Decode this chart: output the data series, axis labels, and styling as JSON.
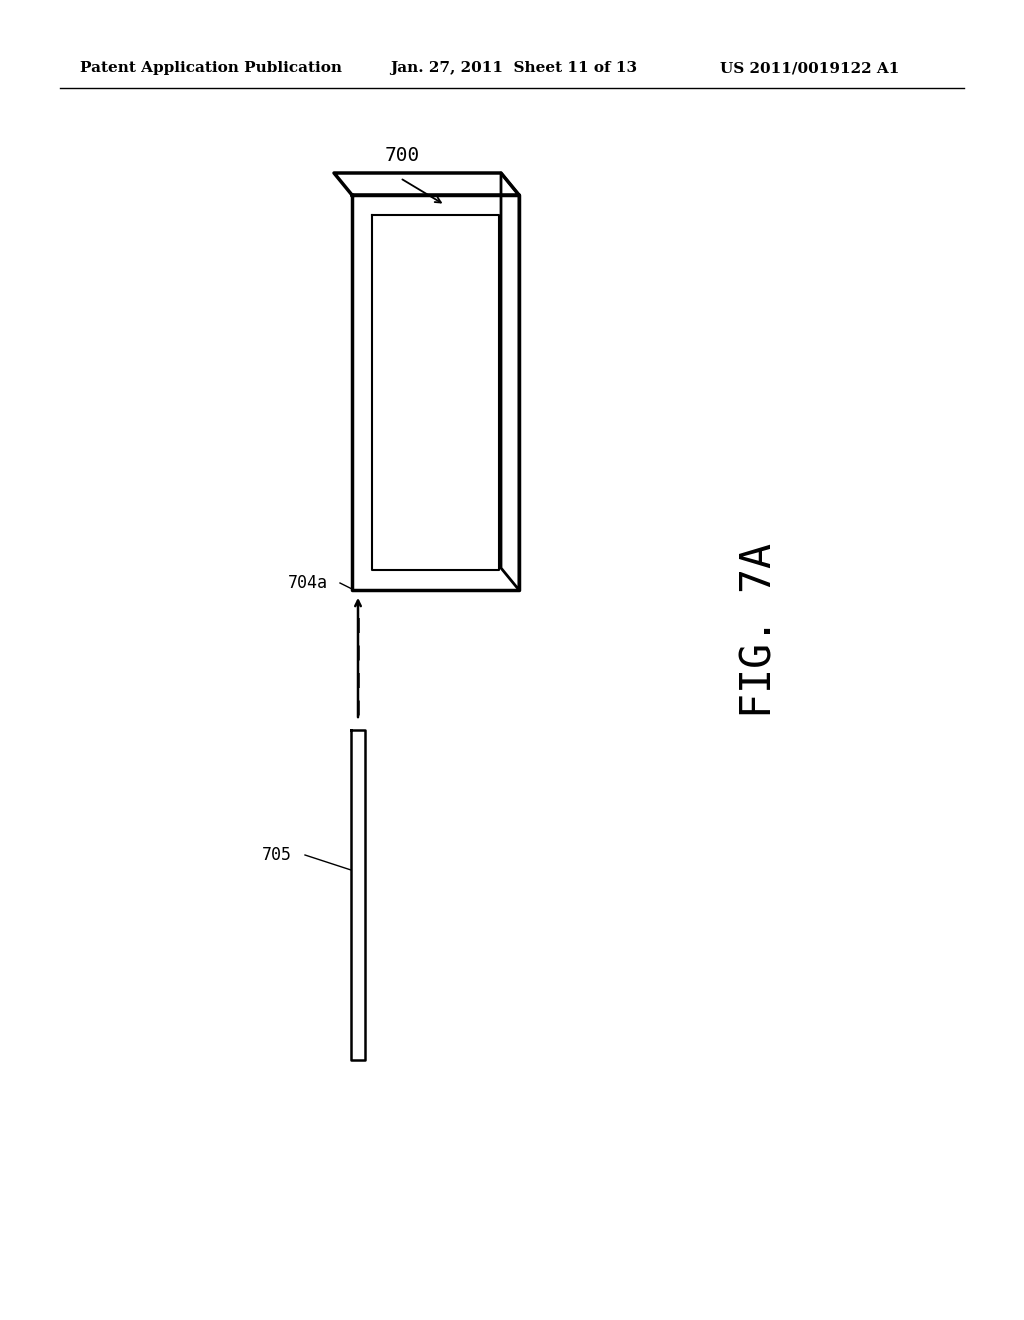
{
  "background_color": "#ffffff",
  "header_left": "Patent Application Publication",
  "header_mid": "Jan. 27, 2011  Sheet 11 of 13",
  "header_right": "US 2011/0019122 A1",
  "fig_label": "FIG. 7A",
  "label_700": "700",
  "label_704a": "704a",
  "label_705": "705",
  "line_color": "#000000"
}
